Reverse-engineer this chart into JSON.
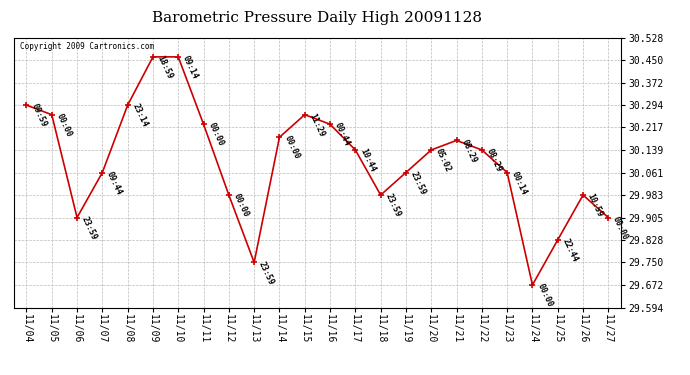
{
  "title": "Barometric Pressure Daily High 20091128",
  "copyright": "Copyright 2009 Cartronics.com",
  "x_labels": [
    "11/04",
    "11/05",
    "11/06",
    "11/07",
    "11/08",
    "11/09",
    "11/10",
    "11/11",
    "11/12",
    "11/13",
    "11/14",
    "11/15",
    "11/16",
    "11/17",
    "11/18",
    "11/19",
    "11/20",
    "11/21",
    "11/22",
    "11/23",
    "11/24",
    "11/25",
    "11/26",
    "11/27"
  ],
  "y_values": [
    30.294,
    30.261,
    29.905,
    30.061,
    30.294,
    30.461,
    30.461,
    30.228,
    29.983,
    29.75,
    30.183,
    30.261,
    30.228,
    30.139,
    29.983,
    30.061,
    30.139,
    30.172,
    30.139,
    30.061,
    29.672,
    29.828,
    29.983,
    29.905
  ],
  "point_labels": [
    "09:59",
    "00:00",
    "23:59",
    "09:44",
    "23:14",
    "18:59",
    "09:14",
    "00:00",
    "00:00",
    "23:59",
    "00:00",
    "11:29",
    "00:44",
    "10:44",
    "23:59",
    "23:59",
    "05:02",
    "08:29",
    "08:29",
    "00:14",
    "00:00",
    "22:44",
    "10:59",
    "00:00"
  ],
  "y_ticks": [
    29.594,
    29.672,
    29.75,
    29.828,
    29.905,
    29.983,
    30.061,
    30.139,
    30.217,
    30.294,
    30.372,
    30.45,
    30.528
  ],
  "y_min": 29.594,
  "y_max": 30.528,
  "line_color": "#cc0000",
  "marker_color": "#cc0000",
  "bg_color": "#ffffff",
  "grid_color": "#bbbbbb",
  "title_fontsize": 11,
  "tick_fontsize": 7,
  "point_label_fontsize": 6
}
